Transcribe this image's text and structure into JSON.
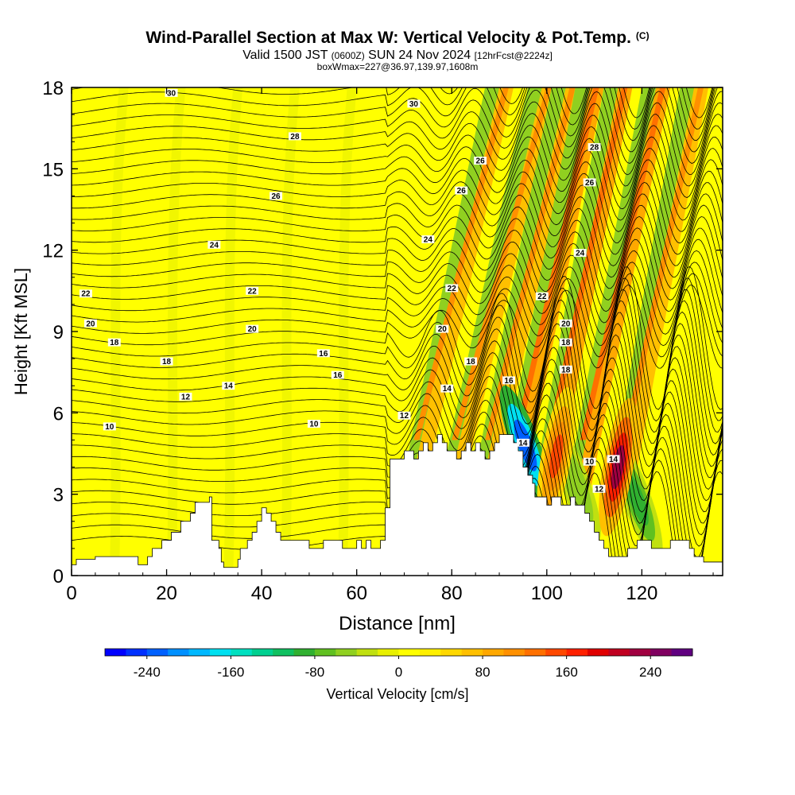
{
  "title": {
    "main": "Wind-Parallel Section at Max W: Vertical Velocity & Pot.Temp.",
    "copyright": "(C)",
    "valid": "Valid 1500 JST",
    "valid_z": "(0600Z)",
    "date": "SUN 24 Nov 2024",
    "fcst": "[12hrFcst@2224z]",
    "box": "boxWmax=227@36.97,139.97,1608m"
  },
  "chart_data": {
    "type": "heatmap",
    "xlabel": "Distance [nm]",
    "ylabel": "Height [Kft MSL]",
    "xlim": [
      0,
      137
    ],
    "ylim": [
      0,
      18
    ],
    "xticks": [
      0,
      20,
      40,
      60,
      80,
      100,
      120
    ],
    "yticks": [
      0,
      3,
      6,
      9,
      12,
      15,
      18
    ],
    "colorbar": {
      "label": "Vertical Velocity [cm/s]",
      "ticks": [
        -240,
        -160,
        -80,
        0,
        80,
        160,
        240
      ],
      "range": [
        -280,
        280
      ],
      "colors": [
        "#0000ff",
        "#0030ff",
        "#0060ff",
        "#0090ff",
        "#00b8ff",
        "#00e0f0",
        "#00e0c0",
        "#00d090",
        "#10c060",
        "#30b030",
        "#60c020",
        "#90d020",
        "#c0e010",
        "#e8f000",
        "#ffff00",
        "#fff000",
        "#ffd800",
        "#ffc000",
        "#ffa800",
        "#ff9000",
        "#ff7000",
        "#ff4800",
        "#ff2000",
        "#e00000",
        "#c00020",
        "#a00040",
        "#800060",
        "#600080"
      ]
    },
    "terrain_kft": [
      [
        0,
        0.4
      ],
      [
        1,
        0.6
      ],
      [
        5,
        0.7
      ],
      [
        8,
        0.7
      ],
      [
        12,
        0.7
      ],
      [
        14,
        0.4
      ],
      [
        16,
        0.7
      ],
      [
        17,
        1.0
      ],
      [
        19,
        1.3
      ],
      [
        21,
        1.6
      ],
      [
        23,
        2.0
      ],
      [
        25,
        2.3
      ],
      [
        26,
        2.7
      ],
      [
        29,
        2.9
      ],
      [
        29.5,
        1.3
      ],
      [
        31,
        1.0
      ],
      [
        31.5,
        0.5
      ],
      [
        32,
        0.3
      ],
      [
        34,
        0.3
      ],
      [
        35,
        0.6
      ],
      [
        35.5,
        1.0
      ],
      [
        37,
        1.3
      ],
      [
        38,
        1.6
      ],
      [
        39,
        2.0
      ],
      [
        40,
        2.5
      ],
      [
        41,
        2.3
      ],
      [
        42,
        2.0
      ],
      [
        43,
        1.6
      ],
      [
        44,
        1.3
      ],
      [
        47,
        1.3
      ],
      [
        50,
        1.0
      ],
      [
        52,
        1.0
      ],
      [
        53,
        1.3
      ],
      [
        55,
        1.3
      ],
      [
        57,
        1.0
      ],
      [
        60,
        1.3
      ],
      [
        61,
        1.0
      ],
      [
        62,
        1.3
      ],
      [
        63,
        1.0
      ],
      [
        65,
        1.3
      ],
      [
        66,
        2.5
      ],
      [
        67,
        4.3
      ],
      [
        70,
        4.6
      ],
      [
        72,
        4.3
      ],
      [
        73,
        4.6
      ],
      [
        74,
        4.9
      ],
      [
        75,
        4.6
      ],
      [
        76,
        4.9
      ],
      [
        77,
        5.2
      ],
      [
        78,
        4.9
      ],
      [
        79,
        4.6
      ],
      [
        81,
        4.3
      ],
      [
        82,
        4.6
      ],
      [
        83,
        4.9
      ],
      [
        84,
        4.6
      ],
      [
        85,
        4.9
      ],
      [
        86,
        4.6
      ],
      [
        87,
        4.3
      ],
      [
        88,
        4.6
      ],
      [
        89,
        4.9
      ],
      [
        90,
        5.2
      ],
      [
        92,
        5.2
      ],
      [
        93,
        4.9
      ],
      [
        94,
        4.6
      ],
      [
        95,
        4.0
      ],
      [
        96,
        3.7
      ],
      [
        97,
        3.4
      ],
      [
        97.5,
        2.9
      ],
      [
        99,
        2.9
      ],
      [
        100,
        2.6
      ],
      [
        101,
        2.9
      ],
      [
        102,
        2.9
      ],
      [
        103,
        2.6
      ],
      [
        104,
        2.6
      ],
      [
        105,
        2.9
      ],
      [
        106,
        2.6
      ],
      [
        108,
        2.3
      ],
      [
        109,
        2.0
      ],
      [
        110,
        1.6
      ],
      [
        111,
        1.3
      ],
      [
        112,
        1.0
      ],
      [
        113,
        0.7
      ],
      [
        115,
        0.7
      ],
      [
        117,
        1.0
      ],
      [
        119,
        1.3
      ],
      [
        122,
        1.0
      ],
      [
        125,
        1.0
      ],
      [
        126,
        1.3
      ],
      [
        129,
        1.3
      ],
      [
        130,
        1.0
      ],
      [
        131,
        0.7
      ],
      [
        133,
        0.5
      ],
      [
        137,
        0.5
      ]
    ],
    "updraft_bands": [
      {
        "x0": 71,
        "x1": 90,
        "w": 70
      },
      {
        "x0": 79,
        "x1": 99,
        "w": 60
      },
      {
        "x0": 86,
        "x1": 104,
        "w": 75
      },
      {
        "x0": 92,
        "x1": 109,
        "w": 80
      },
      {
        "x0": 99,
        "x1": 115,
        "w": 85
      },
      {
        "x0": 106,
        "x1": 123,
        "w": 80
      },
      {
        "x0": 115,
        "x1": 131,
        "w": 60
      }
    ],
    "updraft_cores": [
      {
        "x": 102,
        "y": 4.4,
        "w": 150
      },
      {
        "x": 115,
        "y": 4.0,
        "w": 227
      }
    ],
    "downdraft_cores": [
      {
        "x": 95.5,
        "y": 4.8,
        "w": -230
      },
      {
        "x": 119,
        "y": 2.8,
        "w": -90
      },
      {
        "x": 106,
        "y": 3.4,
        "w": -60
      }
    ],
    "theta_labels": [
      {
        "x": 21,
        "y": 17.8,
        "text": "30"
      },
      {
        "x": 72,
        "y": 17.4,
        "text": "30"
      },
      {
        "x": 47,
        "y": 16.2,
        "text": "28"
      },
      {
        "x": 110,
        "y": 15.8,
        "text": "28"
      },
      {
        "x": 86,
        "y": 15.3,
        "text": "26"
      },
      {
        "x": 43,
        "y": 14.0,
        "text": "26"
      },
      {
        "x": 82,
        "y": 14.2,
        "text": "26"
      },
      {
        "x": 109,
        "y": 14.5,
        "text": "26"
      },
      {
        "x": 75,
        "y": 12.4,
        "text": "24"
      },
      {
        "x": 30,
        "y": 12.2,
        "text": "24"
      },
      {
        "x": 107,
        "y": 11.9,
        "text": "24"
      },
      {
        "x": 3,
        "y": 10.4,
        "text": "22"
      },
      {
        "x": 38,
        "y": 10.5,
        "text": "22"
      },
      {
        "x": 80,
        "y": 10.6,
        "text": "22"
      },
      {
        "x": 99,
        "y": 10.3,
        "text": "22"
      },
      {
        "x": 4,
        "y": 9.3,
        "text": "20"
      },
      {
        "x": 38,
        "y": 9.1,
        "text": "20"
      },
      {
        "x": 78,
        "y": 9.1,
        "text": "20"
      },
      {
        "x": 104,
        "y": 9.3,
        "text": "20"
      },
      {
        "x": 9,
        "y": 8.6,
        "text": "18"
      },
      {
        "x": 20,
        "y": 7.9,
        "text": "18"
      },
      {
        "x": 84,
        "y": 7.9,
        "text": "18"
      },
      {
        "x": 104,
        "y": 8.6,
        "text": "18"
      },
      {
        "x": 104,
        "y": 7.6,
        "text": "18"
      },
      {
        "x": 53,
        "y": 8.2,
        "text": "16"
      },
      {
        "x": 56,
        "y": 7.4,
        "text": "16"
      },
      {
        "x": 92,
        "y": 7.2,
        "text": "16"
      },
      {
        "x": 33,
        "y": 7.0,
        "text": "14"
      },
      {
        "x": 79,
        "y": 6.9,
        "text": "14"
      },
      {
        "x": 95,
        "y": 4.9,
        "text": "14"
      },
      {
        "x": 24,
        "y": 6.6,
        "text": "12"
      },
      {
        "x": 70,
        "y": 5.9,
        "text": "12"
      },
      {
        "x": 111,
        "y": 3.2,
        "text": "12"
      },
      {
        "x": 8,
        "y": 5.5,
        "text": "10"
      },
      {
        "x": 51,
        "y": 5.6,
        "text": "10"
      },
      {
        "x": 109,
        "y": 4.2,
        "text": "10"
      },
      {
        "x": 114,
        "y": 4.3,
        "text": "14"
      }
    ]
  }
}
